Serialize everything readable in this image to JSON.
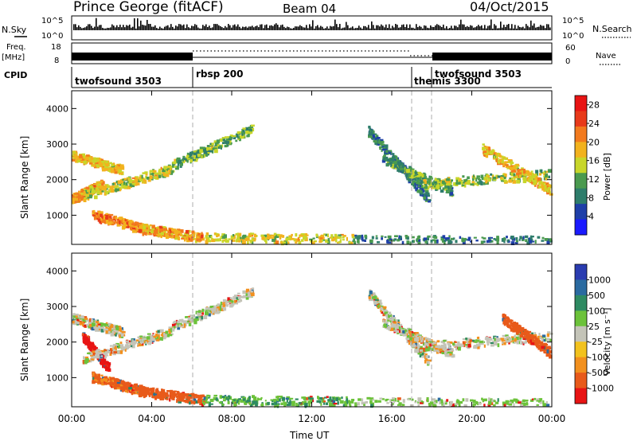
{
  "header": {
    "station": "Prince George (fitACF)",
    "beam": "Beam 04",
    "date": "04/Oct/2015"
  },
  "strips": {
    "nsky_label": "N.Sky",
    "nsky_ticks": [
      "10^5",
      "10^0"
    ],
    "nsearch_label": "N.Search",
    "nsearch_ticks": [
      "10^5",
      "10^0"
    ],
    "freq_label": "Freq.",
    "freq_unit": "[MHz]",
    "freq_ticks": [
      "18",
      "8"
    ],
    "nave_label": "Nave",
    "nave_ticks": [
      "60",
      "0"
    ],
    "cpid_label": "CPID"
  },
  "cpid_segments": [
    {
      "name": "twofsound 3503",
      "start_hour": 0.0
    },
    {
      "name": "rbsp 200",
      "start_hour": 6.0
    },
    {
      "name": "themis 3300",
      "start_hour": 17.0
    },
    {
      "name": "twofsound 3503",
      "start_hour": 18.0
    }
  ],
  "colors": {
    "power": [
      "#1a1aff",
      "#1e3fa8",
      "#2e7d6b",
      "#4a9a4f",
      "#c8d62a",
      "#f2b21e",
      "#f27a1e",
      "#e83a1a",
      "#e81414"
    ],
    "velocity": [
      "#2a3cb0",
      "#2a6aa0",
      "#2e8a62",
      "#6cc23a",
      "#c4c4b8",
      "#f2c21e",
      "#f2901e",
      "#e85a1a",
      "#e81414"
    ]
  },
  "chart_data": [
    {
      "type": "heatmap",
      "title": "",
      "xlabel": "",
      "ylabel": "Slant Range [km]",
      "xlim": [
        "00:00",
        "00:00"
      ],
      "ylim": [
        180,
        4500
      ],
      "x_tick_labels": [
        "00:00",
        "04:00",
        "08:00",
        "12:00",
        "16:00",
        "20:00",
        "00:00"
      ],
      "y_tick_labels": [
        "1000",
        "2000",
        "3000",
        "4000"
      ],
      "colorbar_label": "Power [dB]",
      "colorbar_ticks": [
        "4",
        "8",
        "12",
        "16",
        "20",
        "24",
        "28"
      ],
      "colorbar_range": [
        0,
        30
      ],
      "scatter_bands": [
        {
          "t0": 0.0,
          "t1": 2.5,
          "r0": 2700,
          "r1": 2300,
          "v": 18
        },
        {
          "t0": 0.0,
          "t1": 1.5,
          "r0": 1500,
          "r1": 1900,
          "v": 20
        },
        {
          "t0": 0.5,
          "t1": 5.0,
          "r0": 1550,
          "r1": 2350,
          "v": 16
        },
        {
          "t0": 5.0,
          "t1": 9.0,
          "r0": 2450,
          "r1": 3450,
          "v": 12
        },
        {
          "t0": 1.0,
          "t1": 3.5,
          "r0": 1050,
          "r1": 650,
          "v": 22
        },
        {
          "t0": 3.5,
          "t1": 6.5,
          "r0": 650,
          "r1": 400,
          "v": 20
        },
        {
          "t0": 6.5,
          "t1": 14.0,
          "r0": 400,
          "r1": 350,
          "v": 16
        },
        {
          "t0": 14.0,
          "t1": 24.0,
          "r0": 330,
          "r1": 300,
          "v": 8
        },
        {
          "t0": 14.8,
          "t1": 17.8,
          "r0": 3400,
          "r1": 1500,
          "v": 8
        },
        {
          "t0": 15.5,
          "t1": 19.0,
          "r0": 2600,
          "r1": 1700,
          "v": 10
        },
        {
          "t0": 17.5,
          "t1": 24.0,
          "r0": 1900,
          "r1": 2200,
          "v": 14
        },
        {
          "t0": 20.5,
          "t1": 24.0,
          "r0": 2900,
          "r1": 1700,
          "v": 18
        }
      ]
    },
    {
      "type": "heatmap",
      "title": "",
      "xlabel": "Time UT",
      "ylabel": "Slant Range [km]",
      "xlim": [
        "00:00",
        "00:00"
      ],
      "ylim": [
        180,
        4500
      ],
      "x_tick_labels": [
        "00:00",
        "04:00",
        "08:00",
        "12:00",
        "16:00",
        "20:00",
        "00:00"
      ],
      "y_tick_labels": [
        "1000",
        "2000",
        "3000",
        "4000"
      ],
      "colorbar_label": "Velocity [m s⁻¹]",
      "colorbar_ticks": [
        "1000",
        "500",
        "100",
        "25",
        "-25",
        "-100",
        "-500",
        "-1000"
      ],
      "colorbar_range": [
        -1000,
        1000
      ],
      "scatter_bands": [
        {
          "t0": 0.0,
          "t1": 2.5,
          "r0": 2700,
          "r1": 2300,
          "v": 0
        },
        {
          "t0": 0.5,
          "t1": 1.8,
          "r0": 2200,
          "r1": 1300,
          "v": -600
        },
        {
          "t0": 0.5,
          "t1": 5.0,
          "r0": 1550,
          "r1": 2350,
          "v": 0
        },
        {
          "t0": 5.0,
          "t1": 9.0,
          "r0": 2450,
          "r1": 3450,
          "v": 0
        },
        {
          "t0": 1.0,
          "t1": 3.5,
          "r0": 1050,
          "r1": 650,
          "v": -120
        },
        {
          "t0": 3.5,
          "t1": 6.5,
          "r0": 650,
          "r1": 400,
          "v": -150
        },
        {
          "t0": 6.5,
          "t1": 14.0,
          "r0": 400,
          "r1": 350,
          "v": 90
        },
        {
          "t0": 14.0,
          "t1": 24.0,
          "r0": 330,
          "r1": 300,
          "v": 40
        },
        {
          "t0": 14.8,
          "t1": 17.8,
          "r0": 3400,
          "r1": 1500,
          "v": 0
        },
        {
          "t0": 15.5,
          "t1": 19.0,
          "r0": 2600,
          "r1": 1700,
          "v": 0
        },
        {
          "t0": 17.5,
          "t1": 24.0,
          "r0": 1900,
          "r1": 2200,
          "v": 0
        },
        {
          "t0": 21.5,
          "t1": 24.0,
          "r0": 2700,
          "r1": 1700,
          "v": -400
        }
      ]
    }
  ]
}
